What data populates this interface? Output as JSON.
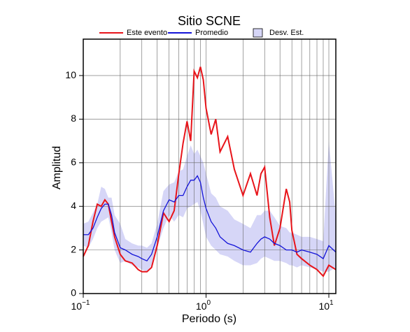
{
  "chart_data": {
    "type": "line",
    "title": "Sitio SCNE",
    "x_label": "Periodo (s)",
    "y_label": "Amplitud",
    "log_x": true,
    "grid": true,
    "xlim": [
      0.1,
      11.4
    ],
    "ylim": [
      0,
      11.67
    ],
    "xticks": [
      {
        "value": 0.1,
        "label": "10",
        "exponent": "−1"
      },
      {
        "value": 1,
        "label": "10",
        "exponent": "0"
      },
      {
        "value": 10,
        "label": "10",
        "exponent": "1"
      }
    ],
    "xminor": [
      0.2,
      0.3,
      0.4,
      0.5,
      0.6,
      0.7,
      0.8,
      0.9,
      2,
      3,
      4,
      5,
      6,
      7,
      8,
      9
    ],
    "yticks": [
      0,
      2,
      4,
      6,
      8,
      10
    ],
    "x": [
      0.1,
      0.11,
      0.12,
      0.13,
      0.14,
      0.15,
      0.16,
      0.17,
      0.18,
      0.2,
      0.22,
      0.25,
      0.28,
      0.3,
      0.33,
      0.36,
      0.4,
      0.45,
      0.5,
      0.55,
      0.6,
      0.65,
      0.7,
      0.75,
      0.8,
      0.85,
      0.9,
      0.95,
      1.0,
      1.1,
      1.2,
      1.3,
      1.5,
      1.7,
      2.0,
      2.3,
      2.6,
      2.8,
      3.0,
      3.3,
      3.6,
      4.0,
      4.5,
      4.8,
      5.0,
      5.5,
      6,
      7,
      8,
      9,
      10,
      11.4
    ],
    "band": {
      "name": "Desv. Est.",
      "color": "#d6d6f7",
      "upper": [
        3.2,
        3.3,
        3.7,
        4.1,
        4.9,
        4.8,
        4.4,
        4.4,
        3.6,
        3.2,
        2.5,
        2.3,
        2.2,
        2.2,
        2.1,
        2.3,
        3.2,
        4.7,
        5.0,
        5.1,
        5.6,
        5.7,
        6.3,
        6.8,
        6.4,
        6.6,
        6.3,
        6.0,
        5.5,
        4.6,
        4.4,
        4.0,
        3.8,
        3.4,
        3.2,
        3.0,
        3.6,
        3.6,
        3.8,
        3.8,
        3.5,
        3.1,
        3.0,
        2.8,
        2.8,
        2.7,
        2.6,
        2.6,
        2.5,
        2.4,
        7.0,
        3.5
      ],
      "lower": [
        2.2,
        2.1,
        2.5,
        3.0,
        3.3,
        3.4,
        3.5,
        2.8,
        2.0,
        1.4,
        1.5,
        1.3,
        1.2,
        1.1,
        1.0,
        1.3,
        2.1,
        3.0,
        3.6,
        3.3,
        3.6,
        3.5,
        3.9,
        4.0,
        4.1,
        4.2,
        3.8,
        3.2,
        2.6,
        2.2,
        2.0,
        1.8,
        1.7,
        1.5,
        1.3,
        1.3,
        1.4,
        1.6,
        1.7,
        1.6,
        1.5,
        1.5,
        1.4,
        1.3,
        1.3,
        1.2,
        1.3,
        1.2,
        1.1,
        1.0,
        1.0,
        1.2
      ]
    },
    "series": [
      {
        "name": "Este evento",
        "color": "#e8141a",
        "values": [
          1.7,
          2.2,
          3.3,
          4.1,
          4.0,
          4.3,
          4.1,
          3.3,
          2.6,
          1.8,
          1.5,
          1.4,
          1.1,
          1.0,
          1.0,
          1.2,
          2.2,
          3.7,
          3.3,
          3.8,
          5.5,
          6.9,
          7.9,
          7.0,
          10.2,
          9.9,
          10.4,
          9.8,
          8.5,
          7.3,
          8.0,
          6.5,
          7.2,
          5.7,
          4.5,
          5.5,
          4.5,
          5.5,
          5.8,
          3.5,
          2.2,
          3.0,
          4.8,
          4.2,
          2.9,
          1.8,
          1.6,
          1.3,
          1.1,
          0.8,
          1.3,
          1.1
        ]
      },
      {
        "name": "Promedio",
        "color": "#1414d8",
        "values": [
          2.7,
          2.7,
          3.0,
          3.5,
          3.9,
          4.1,
          4.1,
          3.6,
          2.8,
          2.1,
          2.0,
          1.8,
          1.7,
          1.6,
          1.5,
          1.8,
          2.6,
          3.8,
          4.3,
          4.2,
          4.5,
          4.5,
          4.9,
          5.2,
          5.2,
          5.4,
          5.1,
          4.4,
          3.9,
          3.3,
          3.0,
          2.6,
          2.3,
          2.2,
          2.0,
          1.9,
          2.3,
          2.5,
          2.6,
          2.5,
          2.3,
          2.2,
          2.0,
          2.0,
          2.0,
          1.9,
          2.0,
          1.9,
          1.8,
          1.6,
          2.2,
          1.9
        ]
      }
    ]
  }
}
